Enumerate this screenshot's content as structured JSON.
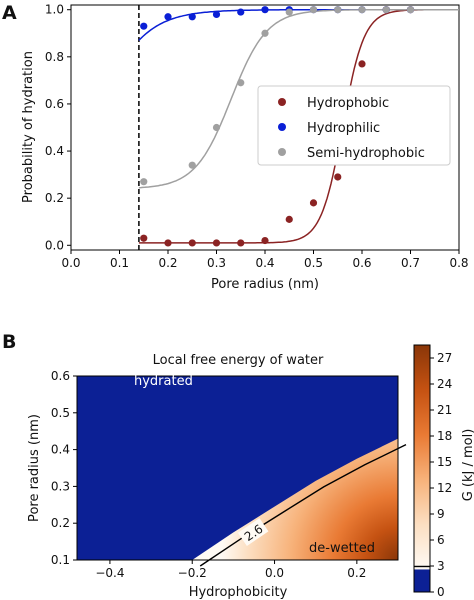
{
  "panels": {
    "a_letter": "A",
    "b_letter": "B"
  },
  "chart_data": [
    {
      "panel": "A",
      "type": "scatter",
      "xlabel": "Pore radius (nm)",
      "ylabel": "Probability of hydration",
      "xlim": [
        0.0,
        0.8
      ],
      "ylim": [
        -0.02,
        1.02
      ],
      "xticks": [
        0.0,
        0.1,
        0.2,
        0.3,
        0.4,
        0.5,
        0.6,
        0.7,
        0.8
      ],
      "xtick_labels": [
        "0.0",
        "0.1",
        "0.2",
        "0.3",
        "0.4",
        "0.5",
        "0.6",
        "0.7",
        "0.8"
      ],
      "yticks": [
        0.0,
        0.2,
        0.4,
        0.6,
        0.8,
        1.0
      ],
      "ytick_labels": [
        "0.0",
        "0.2",
        "0.4",
        "0.6",
        "0.8",
        "1.0"
      ],
      "vline": {
        "x": 0.14,
        "style": "dashed",
        "color": "#000000"
      },
      "legend": {
        "placement": "center-right"
      },
      "series": [
        {
          "name": "Hydrophobic",
          "color": "#8b2323",
          "x": [
            0.15,
            0.2,
            0.25,
            0.3,
            0.35,
            0.4,
            0.45,
            0.5,
            0.55,
            0.6,
            0.65,
            0.7
          ],
          "y": [
            0.03,
            0.01,
            0.01,
            0.01,
            0.01,
            0.02,
            0.11,
            0.18,
            0.29,
            0.77,
            1.0,
            1.0
          ],
          "fit": {
            "type": "sigmoid",
            "x0": 0.56,
            "k": 45,
            "ymin": 0.01,
            "ymax": 1.0
          }
        },
        {
          "name": "Hydrophilic",
          "color": "#0a1fd6",
          "x": [
            0.15,
            0.2,
            0.25,
            0.3,
            0.35,
            0.4,
            0.45,
            0.5,
            0.55,
            0.6,
            0.65,
            0.7
          ],
          "y": [
            0.93,
            0.97,
            0.97,
            0.98,
            0.99,
            1.0,
            1.0,
            1.0,
            1.0,
            1.0,
            1.0,
            1.0
          ],
          "fit": {
            "type": "sigmoid",
            "x0": 0.04,
            "k": 19,
            "ymin": 0.0,
            "ymax": 1.0
          }
        },
        {
          "name": "Semi-hydrophobic",
          "color": "#a0a0a0",
          "x": [
            0.15,
            0.25,
            0.3,
            0.35,
            0.4,
            0.45,
            0.5,
            0.55,
            0.6,
            0.65,
            0.7
          ],
          "y": [
            0.27,
            0.34,
            0.5,
            0.69,
            0.9,
            0.99,
            1.0,
            1.0,
            1.0,
            1.0,
            1.0
          ],
          "fit": {
            "type": "sigmoid",
            "x0": 0.33,
            "k": 27,
            "ymin": 0.24,
            "ymax": 1.0
          }
        }
      ]
    },
    {
      "panel": "B",
      "type": "heatmap",
      "title": "Local free energy of water",
      "xlabel": "Hydrophobicity",
      "ylabel": "Pore radius (nm)",
      "xlim": [
        -0.48,
        0.3
      ],
      "ylim": [
        0.1,
        0.6
      ],
      "xticks": [
        -0.4,
        -0.2,
        0.0,
        0.2
      ],
      "xtick_labels": [
        "−0.4",
        "−0.2",
        "0.0",
        "0.2"
      ],
      "yticks": [
        0.1,
        0.2,
        0.3,
        0.4,
        0.5,
        0.6
      ],
      "ytick_labels": [
        "0.1",
        "0.2",
        "0.3",
        "0.4",
        "0.5",
        "0.6"
      ],
      "boundary": {
        "hydrophobicity": [
          -0.2,
          -0.1,
          0.0,
          0.1,
          0.2,
          0.3
        ],
        "pore_radius": [
          0.1,
          0.175,
          0.245,
          0.315,
          0.375,
          0.43
        ]
      },
      "contour": {
        "level": 2.6,
        "label": "2.6"
      },
      "hydrated_color": "#0c2095",
      "region_labels": {
        "hydrated": "hydrated",
        "dewetted": "de-wetted"
      },
      "colorbar": {
        "label": "G (kJ / mol)",
        "ticks": [
          0,
          3,
          6,
          9,
          12,
          15,
          18,
          21,
          24,
          27
        ],
        "tick_labels": [
          "0",
          "3",
          "6",
          "9",
          "12",
          "15",
          "18",
          "21",
          "24",
          "27"
        ],
        "max": 28.5,
        "scale_colors": [
          "#fefaf4",
          "#fcdfc2",
          "#f7b27a",
          "#e97a34",
          "#c55212",
          "#8a3608"
        ],
        "low_color": "#0c2095",
        "marker_value": 2.6
      }
    }
  ]
}
